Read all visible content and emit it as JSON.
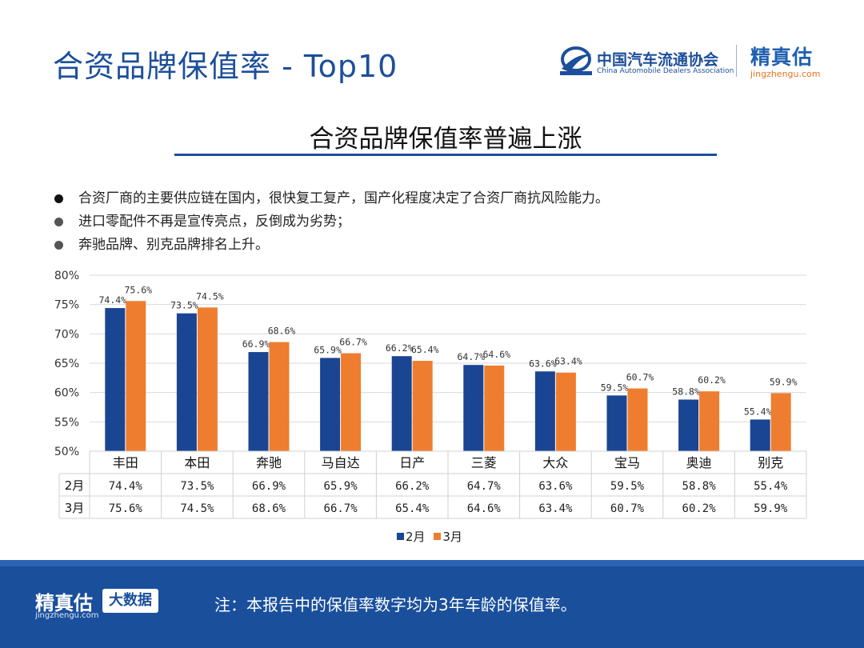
{
  "header": {
    "title": "合资品牌保值率 - Top10",
    "caada_logo_cn": "中国汽车流通协会",
    "caada_logo_en": "China Automobile Dealers Association",
    "jzg_logo_cn": "精真估",
    "jzg_logo_en": "jingzhengu.com"
  },
  "subtitle": "合资品牌保值率普遍上涨",
  "bullets": [
    "合资厂商的主要供应链在国内，很快复工复产，国产化程度决定了合资厂商抗风险能力。",
    "进口零配件不再是宣传亮点，反倒成为劣势；",
    "奔驰品牌、别克品牌排名上升。"
  ],
  "chart_data": {
    "type": "bar",
    "categories": [
      "丰田",
      "本田",
      "奔驰",
      "马自达",
      "日产",
      "三菱",
      "大众",
      "宝马",
      "奥迪",
      "别克"
    ],
    "series": [
      {
        "name": "2月",
        "values": [
          74.4,
          73.5,
          66.9,
          65.9,
          66.2,
          64.7,
          63.6,
          59.5,
          58.8,
          55.4
        ],
        "labels": [
          "74.4%",
          "73.5%",
          "66.9%",
          "65.9%",
          "66.2%",
          "64.7%",
          "63.6%",
          "59.5%",
          "58.8%",
          "55.4%"
        ],
        "color": "#1a4592"
      },
      {
        "name": "3月",
        "values": [
          75.6,
          74.5,
          68.6,
          66.7,
          65.4,
          64.6,
          63.4,
          60.7,
          60.2,
          59.9
        ],
        "labels": [
          "75.6%",
          "74.5%",
          "68.6%",
          "66.7%",
          "65.4%",
          "64.6%",
          "63.4%",
          "60.7%",
          "60.2%",
          "59.9%"
        ],
        "color": "#ee7d30"
      }
    ],
    "ylim": [
      50,
      80
    ],
    "yticks": [
      50,
      55,
      60,
      65,
      70,
      75,
      80
    ],
    "ytick_labels": [
      "50%",
      "55%",
      "60%",
      "65%",
      "70%",
      "75%",
      "80%"
    ],
    "grid": true,
    "data_table": true,
    "legend_position": "bottom"
  },
  "footer": {
    "logo_cn": "精真估",
    "logo_en": "jingzhengu.com",
    "badge": "大数据",
    "note": "注：本报告中的保值率数字均为3年车龄的保值率。"
  }
}
